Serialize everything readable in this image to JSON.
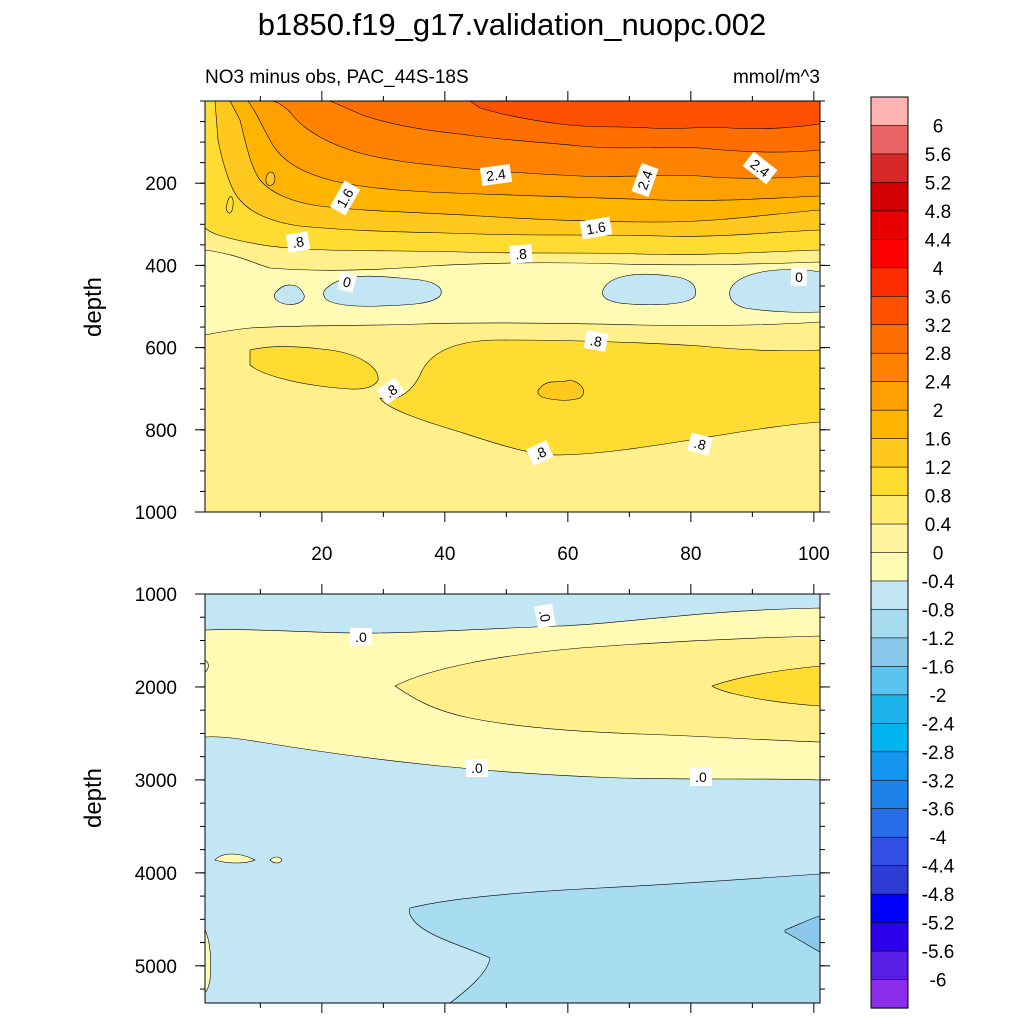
{
  "title": "b1850.f19_g17.validation_nuopc.002",
  "subtitle_left": "NO3 minus obs, PAC_44S-18S",
  "subtitle_right": "mmol/m^3",
  "colorbar": {
    "labels": [
      "6",
      "5.6",
      "5.2",
      "4.8",
      "4.4",
      "4",
      "3.6",
      "3.2",
      "2.8",
      "2.4",
      "2",
      "1.6",
      "1.2",
      "0.8",
      "0.4",
      "0",
      "-0.4",
      "-0.8",
      "-1.2",
      "-1.6",
      "-2",
      "-2.4",
      "-2.8",
      "-3.2",
      "-3.6",
      "-4",
      "-4.4",
      "-4.8",
      "-5.2",
      "-5.6",
      "-6"
    ],
    "colors": [
      "#ffb2b2",
      "#e86464",
      "#d72828",
      "#d20000",
      "#e60000",
      "#ff0000",
      "#ff2d00",
      "#ff5000",
      "#ff6e00",
      "#ff8200",
      "#ffa000",
      "#ffb400",
      "#ffc81e",
      "#ffdc32",
      "#ffeb6e",
      "#fff5a0",
      "#fffab4",
      "#c3e6f5",
      "#a8dcf0",
      "#8cc8eb",
      "#5ac3f0",
      "#1eb4eb",
      "#00b4f0",
      "#1496f0",
      "#1e82eb",
      "#286eeb",
      "#3250e6",
      "#2d3cd2",
      "#0000ff",
      "#2d00eb",
      "#5a1ee6",
      "#8c2deb"
    ],
    "order": "top-to-bottom"
  },
  "chart_data": [
    {
      "type": "contour",
      "panel": "upper",
      "ylabel": "depth",
      "xlabel": "",
      "x_range": [
        1,
        101
      ],
      "y_range": [
        0,
        1000
      ],
      "y_inverted": true,
      "xticks": [
        "20",
        "40",
        "60",
        "80",
        "100"
      ],
      "yticks": [
        "200",
        "400",
        "600",
        "800",
        "1000"
      ],
      "contour_levels": [
        0,
        0.4,
        0.8,
        1.2,
        1.6,
        2.0,
        2.4,
        2.8,
        3.2
      ],
      "contour_labels": [
        ".8",
        "1.6",
        "2.4",
        "2.4",
        "2.4",
        "1.6",
        ".8",
        "0",
        "0",
        ".8",
        ".8",
        ".8",
        ".8"
      ],
      "surface_max_approx": 3.2,
      "notes": "Positive bias decreasing with depth; zero/negative lens near 450 m; secondary maximum (~1.2) centered near x=55-60, depth 700 m"
    },
    {
      "type": "contour",
      "panel": "lower",
      "ylabel": "depth",
      "xlabel": "",
      "x_range": [
        1,
        101
      ],
      "y_range": [
        1000,
        5400
      ],
      "y_inverted": true,
      "xticks": [
        "20",
        "40",
        "60",
        "80",
        "100"
      ],
      "yticks": [
        "1000",
        "2000",
        "3000",
        "4000",
        "5000"
      ],
      "contour_levels": [
        -0.4,
        0,
        0.4
      ],
      "contour_labels": [
        ".0",
        ".0",
        ".0",
        ".0"
      ],
      "notes": "Weak positive anomaly 1300-2600 m (up to ~0.4 near x=100, 2000 m); negative (-0.4) below ~2600 m; slightly more negative (-0.8) deep east below 4000 m"
    }
  ]
}
